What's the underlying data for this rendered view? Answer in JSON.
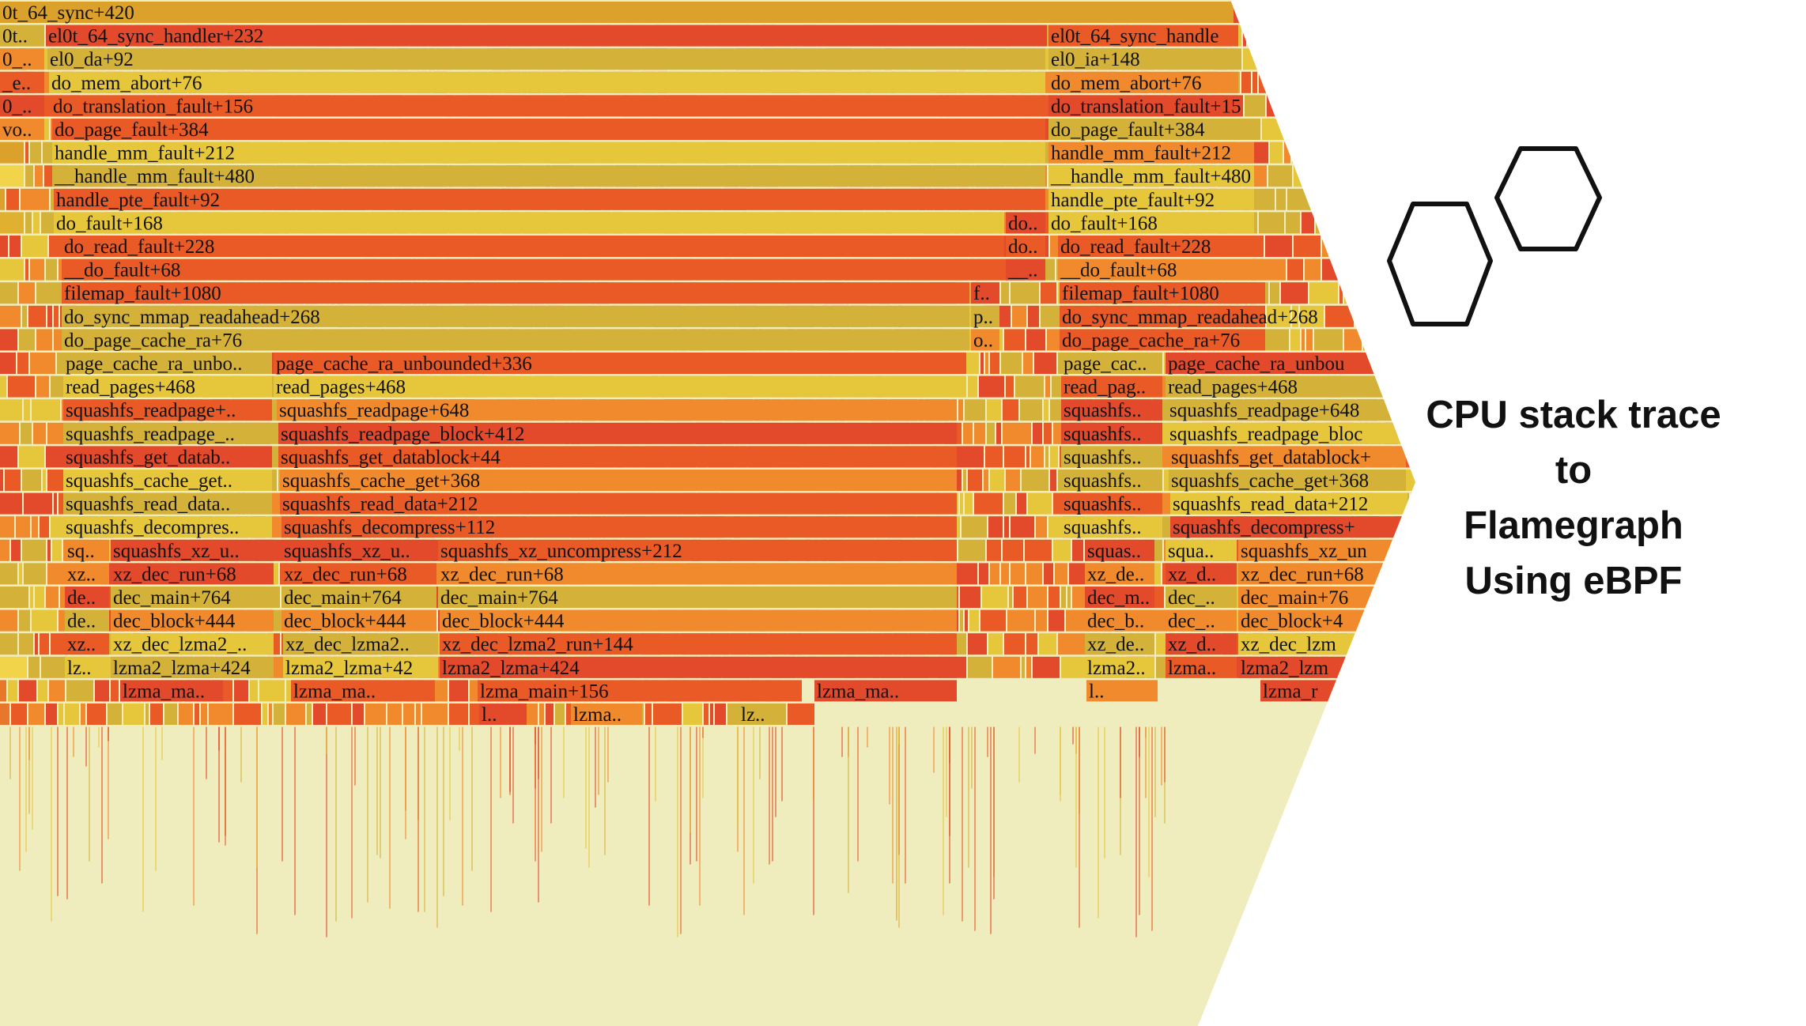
{
  "flamegraph": {
    "background": "#efecbd",
    "palette": [
      "#e34a2b",
      "#e8772b",
      "#f08a2c",
      "#dca12b",
      "#e6c63a",
      "#f2d44a",
      "#d4b23a",
      "#c8402a",
      "#ea5a26",
      "#e0b030"
    ],
    "frames": [
      [
        "0t_64_sync+420",
        "",
        "",
        ""
      ],
      [
        "0t..",
        "el0t_64_sync_handler+232",
        "el0t_64_sync_handle",
        ""
      ],
      [
        "0_..",
        "el0_da+92",
        "el0_ia+148",
        ""
      ],
      [
        "_e..",
        "do_mem_abort+76",
        "do_mem_abort+76",
        ""
      ],
      [
        "0_..",
        "do_translation_fault+156",
        "do_translation_fault+15",
        ""
      ],
      [
        "vo..",
        "do_page_fault+384",
        "do_page_fault+384",
        ""
      ],
      [
        "",
        "handle_mm_fault+212",
        "handle_mm_fault+212",
        ""
      ],
      [
        "",
        "__handle_mm_fault+480",
        "__handle_mm_fault+480",
        ""
      ],
      [
        "",
        "handle_pte_fault+92",
        "handle_pte_fault+92",
        ""
      ],
      [
        "",
        "do_fault+168",
        "do..",
        "do_fault+168"
      ],
      [
        "",
        "do_read_fault+228",
        "do..",
        "do_read_fault+228"
      ],
      [
        "",
        "__do_fault+68",
        "__..",
        "__do_fault+68"
      ],
      [
        "",
        "filemap_fault+1080",
        "f..",
        "filemap_fault+1080"
      ],
      [
        "",
        "do_sync_mmap_readahead+268",
        "p..",
        "do_sync_mmap_readahead+268"
      ],
      [
        "",
        "do_page_cache_ra+76",
        "o..",
        "do_page_cache_ra+76"
      ],
      [
        "page_cache_ra_unbo..",
        "page_cache_ra_unbounded+336",
        "page_cac..",
        "page_cache_ra_unbou"
      ],
      [
        "read_pages+468",
        "read_pages+468",
        "read_pag..",
        "read_pages+468"
      ],
      [
        "squashfs_readpage+..",
        "squashfs_readpage+648",
        "squashfs..",
        "squashfs_readpage+648"
      ],
      [
        "squashfs_readpage_..",
        "squashfs_readpage_block+412",
        "squashfs..",
        "squashfs_readpage_bloc"
      ],
      [
        "squashfs_get_datab..",
        "squashfs_get_datablock+44",
        "squashfs..",
        "squashfs_get_datablock+"
      ],
      [
        "squashfs_cache_get..",
        "squashfs_cache_get+368",
        "squashfs..",
        "squashfs_cache_get+368"
      ],
      [
        "squashfs_read_data..",
        "squashfs_read_data+212",
        "squashfs..",
        "squashfs_read_data+212"
      ],
      [
        "squashfs_decompres..",
        "squashfs_decompress+112",
        "squashfs..",
        "squashfs_decompress+"
      ],
      [
        "sq..",
        "squashfs_xz_u..",
        "squashfs_xz_u..",
        "squashfs_xz_uncompress+212",
        "squas..",
        "squa..",
        "squashfs_xz_un"
      ],
      [
        "xz..",
        "xz_dec_run+68",
        "xz_dec_run+68",
        "xz_dec_run+68",
        "xz_de..",
        "xz_d..",
        "xz_dec_run+68"
      ],
      [
        "de..",
        "dec_main+764",
        "dec_main+764",
        "dec_main+764",
        "dec_m..",
        "dec_..",
        "dec_main+76"
      ],
      [
        "de..",
        "dec_block+444",
        "dec_block+444",
        "dec_block+444",
        "dec_b..",
        "dec_..",
        "dec_block+4"
      ],
      [
        "xz..",
        "xz_dec_lzma2_..",
        "xz_dec_lzma2..",
        "xz_dec_lzma2_run+144",
        "xz_de..",
        "xz_d..",
        "xz_dec_lzm"
      ],
      [
        "lz..",
        "lzma2_lzma+424",
        "lzma2_lzma+42",
        "lzma2_lzma+424",
        "lzma2..",
        "lzma..",
        "lzma2_lzm"
      ],
      [
        "lzma_ma..",
        "lzma_ma..",
        "lzma_main+156",
        "lzma_ma..",
        "l..",
        "lzma_r"
      ],
      [
        "l..",
        "lzma..",
        "lz.."
      ]
    ]
  },
  "logo": {
    "icon": "hexagon-pair-icon",
    "stroke": "#111111"
  },
  "caption": {
    "line1": "CPU stack trace",
    "line2": "to",
    "line3": "Flamegraph",
    "line4": "Using eBPF"
  }
}
